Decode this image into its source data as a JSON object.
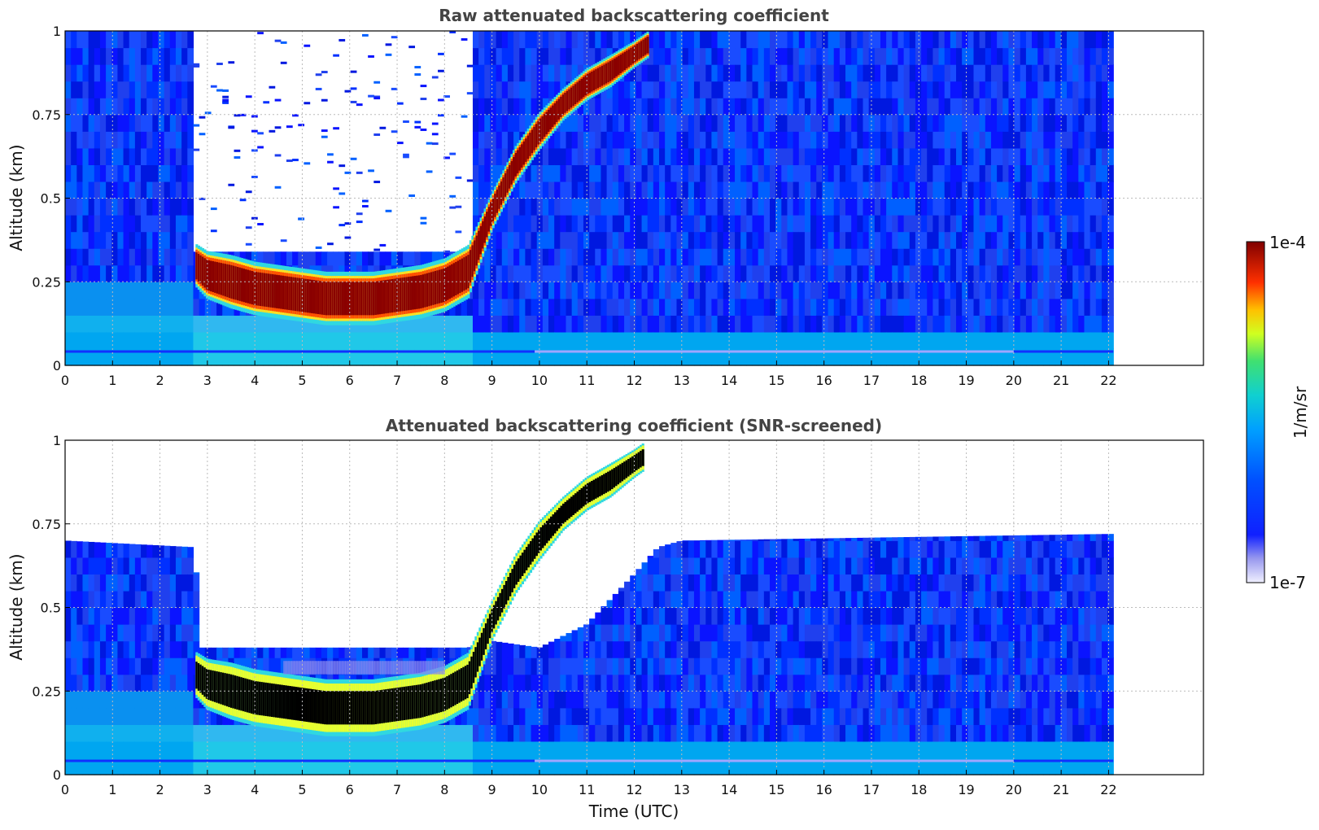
{
  "chart_data": [
    {
      "type": "heatmap",
      "title": "Raw attenuated backscattering coefficient",
      "ylabel": "Altitude (km)",
      "xlabel": "",
      "xlim": [
        0,
        24
      ],
      "ylim": [
        0,
        1
      ],
      "x_ticks": [
        "0",
        "1",
        "2",
        "3",
        "4",
        "5",
        "6",
        "7",
        "8",
        "9",
        "10",
        "11",
        "12",
        "13",
        "14",
        "15",
        "16",
        "17",
        "18",
        "19",
        "20",
        "21",
        "22"
      ],
      "y_ticks": [
        "0",
        "0.25",
        "0.5",
        "0.75",
        "1"
      ],
      "grid": true,
      "data_extent_x": [
        0,
        22.1
      ],
      "regions": [
        {
          "feature": "surface noise layer",
          "x_range": [
            0,
            22.1
          ],
          "y_range": [
            0,
            0.05
          ]
        },
        {
          "feature": "aerosol/cloud layer (strong)",
          "x_range": [
            2.75,
            8.55
          ],
          "y_range": [
            0.15,
            0.33
          ]
        },
        {
          "feature": "rising layer",
          "x_range": [
            8.5,
            12.3
          ],
          "y_range": [
            0.33,
            0.98
          ]
        }
      ],
      "layer": {
        "x": [
          2.75,
          3.0,
          3.5,
          4.0,
          4.5,
          5.0,
          5.5,
          6.0,
          6.5,
          7.0,
          7.5,
          8.0,
          8.5,
          9.0,
          9.5,
          10.0,
          10.5,
          11.0,
          11.5,
          12.0,
          12.3
        ],
        "center": [
          0.3,
          0.27,
          0.25,
          0.23,
          0.22,
          0.21,
          0.2,
          0.2,
          0.2,
          0.21,
          0.22,
          0.24,
          0.28,
          0.46,
          0.6,
          0.7,
          0.78,
          0.84,
          0.88,
          0.93,
          0.96
        ],
        "thickness": [
          0.08,
          0.09,
          0.1,
          0.1,
          0.1,
          0.1,
          0.1,
          0.1,
          0.1,
          0.1,
          0.1,
          0.1,
          0.1,
          0.07,
          0.07,
          0.07,
          0.06,
          0.06,
          0.06,
          0.05,
          0.05
        ]
      }
    },
    {
      "type": "heatmap",
      "title": "Attenuated backscattering coefficient (SNR-screened)",
      "ylabel": "Altitude (km)",
      "xlabel": "Time (UTC)",
      "xlim": [
        0,
        24
      ],
      "ylim": [
        0,
        1
      ],
      "x_ticks": [
        "0",
        "1",
        "2",
        "3",
        "4",
        "5",
        "6",
        "7",
        "8",
        "9",
        "10",
        "11",
        "12",
        "13",
        "14",
        "15",
        "16",
        "17",
        "18",
        "19",
        "20",
        "21",
        "22"
      ],
      "y_ticks": [
        "0",
        "0.25",
        "0.5",
        "0.75",
        "1"
      ],
      "grid": true,
      "data_extent_x": [
        0,
        22.1
      ],
      "signal_top": {
        "x": [
          0,
          2.75,
          2.8,
          8.5,
          9.0,
          10.0,
          11.0,
          12.0,
          12.5,
          13.0,
          22.1
        ],
        "y": [
          0.7,
          0.68,
          0.38,
          0.38,
          0.4,
          0.38,
          0.45,
          0.6,
          0.68,
          0.7,
          0.72
        ]
      }
    }
  ],
  "colorbar": {
    "max_label": "1e-4",
    "min_label": "1e-7",
    "unit_label": "1/m/sr",
    "scale": "log"
  },
  "colors": {
    "title": "#444444",
    "frame": "#000000",
    "grid": "#bbbbbb",
    "black_saturation": "#000000"
  }
}
